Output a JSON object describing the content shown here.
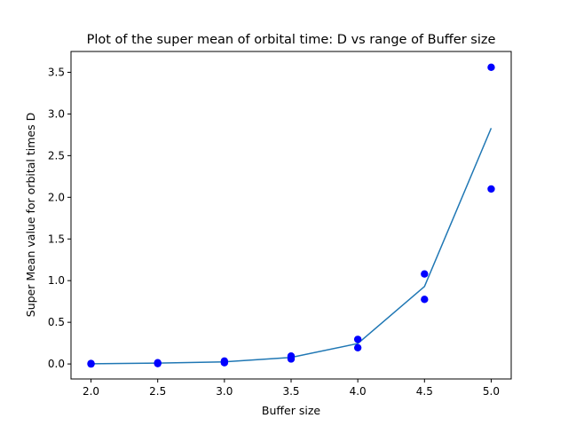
{
  "chart_data": {
    "type": "scatter",
    "title": "Plot of the super mean of orbital time: D vs range of Buffer size",
    "xlabel": "Buffer size",
    "ylabel": "Super Mean value for orbital times D",
    "xlim": [
      1.85,
      5.15
    ],
    "ylim": [
      -0.18,
      3.75
    ],
    "x_ticks": [
      2.0,
      2.5,
      3.0,
      3.5,
      4.0,
      4.5,
      5.0
    ],
    "x_tick_labels": [
      "2.0",
      "2.5",
      "3.0",
      "3.5",
      "4.0",
      "4.5",
      "5.0"
    ],
    "y_ticks": [
      0.0,
      0.5,
      1.0,
      1.5,
      2.0,
      2.5,
      3.0,
      3.5
    ],
    "y_tick_labels": [
      "0.0",
      "0.5",
      "1.0",
      "1.5",
      "2.0",
      "2.5",
      "3.0",
      "3.5"
    ],
    "grid": false,
    "legend": "none",
    "series": [
      {
        "kind": "scatter",
        "color": "#0000ff",
        "points": [
          [
            2.0,
            0.0
          ],
          [
            2.0,
            0.005
          ],
          [
            2.5,
            0.005
          ],
          [
            2.5,
            0.015
          ],
          [
            3.0,
            0.015
          ],
          [
            3.0,
            0.035
          ],
          [
            3.5,
            0.06
          ],
          [
            3.5,
            0.095
          ],
          [
            4.0,
            0.195
          ],
          [
            4.0,
            0.295
          ],
          [
            4.5,
            0.775
          ],
          [
            4.5,
            1.08
          ],
          [
            5.0,
            2.1
          ],
          [
            5.0,
            3.56
          ]
        ]
      },
      {
        "kind": "line",
        "color": "#1f77b4",
        "points": [
          [
            2.0,
            0.003
          ],
          [
            2.5,
            0.01
          ],
          [
            3.0,
            0.025
          ],
          [
            3.5,
            0.078
          ],
          [
            4.0,
            0.245
          ],
          [
            4.5,
            0.93
          ],
          [
            5.0,
            2.83
          ]
        ]
      }
    ]
  }
}
